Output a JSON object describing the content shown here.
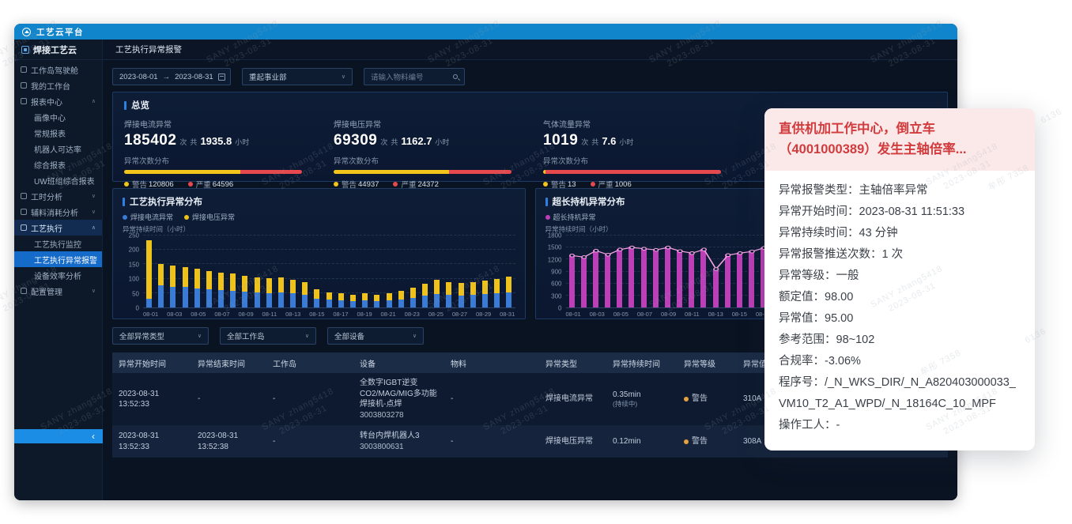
{
  "app": {
    "platform_title": "工艺云平台",
    "page_tab": "工艺执行异常报警"
  },
  "sidebar": {
    "title": "焊接工艺云",
    "collapse": "‹",
    "active_item": "工艺执行异常报警",
    "items": [
      {
        "label": "工作岛驾驶舱",
        "icon": "workisland-icon"
      },
      {
        "label": "我的工作台",
        "icon": "workbench-icon"
      },
      {
        "label": "报表中心",
        "icon": "report-icon",
        "arrow": "∧",
        "children": [
          "画像中心",
          "常规报表",
          "机器人可达率",
          "综合报表",
          "UW班组综合报表"
        ]
      },
      {
        "label": "工时分析",
        "icon": "clock-icon",
        "arrow": "∨"
      },
      {
        "label": "辅料消耗分析",
        "icon": "material-icon",
        "arrow": "∨"
      },
      {
        "label": "工艺执行",
        "icon": "process-icon",
        "arrow": "∧",
        "active": true,
        "children": [
          "工艺执行监控",
          "工艺执行异常报警",
          "设备效率分析"
        ]
      },
      {
        "label": "配置管理",
        "icon": "gear-icon",
        "arrow": "∨"
      }
    ]
  },
  "filters": {
    "date_start": "2023-08-01",
    "date_arrow": "→",
    "date_end": "2023-08-31",
    "division": "重起事业部",
    "search_placeholder": "请输入物料编号"
  },
  "overview": {
    "title": "总览",
    "dist_label": "异常次数分布",
    "count_unit": "次",
    "hours_prefix": "共",
    "hours_unit": "小时",
    "warn_label": "警告",
    "severe_label": "严重",
    "warn_color": "#f3c51b",
    "severe_color": "#e5484d",
    "stats": [
      {
        "label": "焊接电流异常",
        "count": "185402",
        "hours": "1935.8",
        "warn": "120806",
        "severe": "64596",
        "warn_num": 120806,
        "severe_num": 64596
      },
      {
        "label": "焊接电压异常",
        "count": "69309",
        "hours": "1162.7",
        "warn": "44937",
        "severe": "24372",
        "warn_num": 44937,
        "severe_num": 24372
      },
      {
        "label": "气体流量异常",
        "count": "1019",
        "hours": "7.6",
        "warn": "13",
        "severe": "1006",
        "warn_num": 13,
        "severe_num": 1006
      }
    ]
  },
  "chart_data": [
    {
      "type": "bar",
      "stacked": true,
      "title": "工艺执行异常分布",
      "ylabel": "异常持续时间（小时）",
      "ylim": [
        0,
        250
      ],
      "yticks": [
        0,
        50,
        100,
        150,
        200,
        250
      ],
      "xtick_step": 2,
      "categories": [
        "08-01",
        "08-02",
        "08-03",
        "08-04",
        "08-05",
        "08-06",
        "08-07",
        "08-08",
        "08-09",
        "08-10",
        "08-11",
        "08-12",
        "08-13",
        "08-14",
        "08-15",
        "08-16",
        "08-17",
        "08-18",
        "08-19",
        "08-20",
        "08-21",
        "08-22",
        "08-23",
        "08-24",
        "08-25",
        "08-26",
        "08-27",
        "08-28",
        "08-29",
        "08-30",
        "08-31"
      ],
      "series": [
        {
          "name": "焊接电流异常",
          "color": "#3a7bd5",
          "values": [
            30,
            75,
            72,
            70,
            66,
            62,
            60,
            58,
            55,
            52,
            50,
            52,
            48,
            44,
            30,
            26,
            24,
            22,
            24,
            22,
            25,
            28,
            34,
            40,
            46,
            44,
            42,
            44,
            46,
            48,
            52
          ]
        },
        {
          "name": "焊接电压异常",
          "color": "#eec21a",
          "values": [
            200,
            75,
            72,
            68,
            66,
            62,
            60,
            58,
            55,
            52,
            50,
            52,
            48,
            44,
            32,
            26,
            24,
            22,
            24,
            22,
            25,
            28,
            34,
            42,
            48,
            44,
            42,
            44,
            46,
            50,
            54
          ]
        }
      ]
    },
    {
      "type": "bar",
      "stacked": false,
      "title": "超长持机异常分布",
      "ylabel": "异常持续时间（小时）",
      "ylim": [
        0,
        1800
      ],
      "yticks": [
        0,
        300,
        600,
        900,
        1200,
        1500,
        1800
      ],
      "xtick_step": 2,
      "line_overlay": {
        "color": "#f0a0e0"
      },
      "categories": [
        "08-01",
        "08-02",
        "08-03",
        "08-04",
        "08-05",
        "08-06",
        "08-07",
        "08-08",
        "08-09",
        "08-10",
        "08-11",
        "08-12",
        "08-13",
        "08-14",
        "08-15",
        "08-16",
        "08-17",
        "08-18",
        "08-19",
        "08-20",
        "08-21",
        "08-22",
        "08-23",
        "08-24",
        "08-25",
        "08-26",
        "08-27",
        "08-28",
        "08-29",
        "08-30",
        "08-31"
      ],
      "series": [
        {
          "name": "超长持机异常",
          "color": "#bd3fb8",
          "values": [
            1300,
            1260,
            1420,
            1320,
            1450,
            1500,
            1470,
            1440,
            1500,
            1410,
            1360,
            1450,
            960,
            1310,
            1360,
            1400,
            1490,
            1450,
            1320,
            1260,
            1010,
            1210,
            1300,
            1260,
            1350,
            1300,
            1210,
            1150,
            660,
            910,
            1290
          ]
        }
      ]
    }
  ],
  "filters2": {
    "type": "全部异常类型",
    "island": "全部工作岛",
    "device": "全部设备"
  },
  "table": {
    "columns": [
      "异常开始时间",
      "异常结束时间",
      "工作岛",
      "设备",
      "物料",
      "异常类型",
      "异常持续时间",
      "异常等级",
      "异常值"
    ],
    "level_dot_color": "#e6a23c",
    "rows": [
      {
        "start": "2023-08-31 13:52:33",
        "end": "-",
        "island": "-",
        "device_name": "全数字IGBT逆变CO2/MAG/MIG多功能焊接机-点焊",
        "device_code": "3003803278",
        "material": "-",
        "type": "焊接电流异常",
        "duration": "0.35min",
        "duration_note": "(持续中)",
        "level": "警告",
        "value": "310A"
      },
      {
        "start": "2023-08-31 13:52:33",
        "end": "2023-08-31 13:52:38",
        "island": "-",
        "device_name": "转台内焊机器人3",
        "device_code": "3003800631",
        "material": "-",
        "type": "焊接电压异常",
        "duration": "0.12min",
        "duration_note": "",
        "level": "警告",
        "value": "308A"
      }
    ]
  },
  "popup": {
    "title": "直供机加工作中心，倒立车（4001000389）发生主轴倍率...",
    "colon": "：",
    "lines": [
      {
        "label": "异常报警类型",
        "value": "主轴倍率异常"
      },
      {
        "label": "异常开始时间",
        "value": "2023-08-31 11:51:33"
      },
      {
        "label": "异常持续时间",
        "value": "43 分钟"
      },
      {
        "label": "异常报警推送次数",
        "value": "1 次"
      },
      {
        "label": "异常等级",
        "value": "一般"
      },
      {
        "label": "额定值",
        "value": "98.00"
      },
      {
        "label": "异常值",
        "value": "95.00"
      },
      {
        "label": "参考范围",
        "value": "98~102"
      },
      {
        "label": "合规率",
        "value": "-3.06%"
      },
      {
        "label": "程序号",
        "value": "/_N_WKS_DIR/_N_A820403000033_VM10_T2_A1_WPD/_N_18164C_10_MPF"
      },
      {
        "label": "操作工人",
        "value": "-"
      }
    ]
  },
  "watermark": {
    "primary": "SANY zhang5418",
    "secondary": "2023-08-31",
    "extra": [
      "牟彤 7358",
      "6136"
    ]
  }
}
